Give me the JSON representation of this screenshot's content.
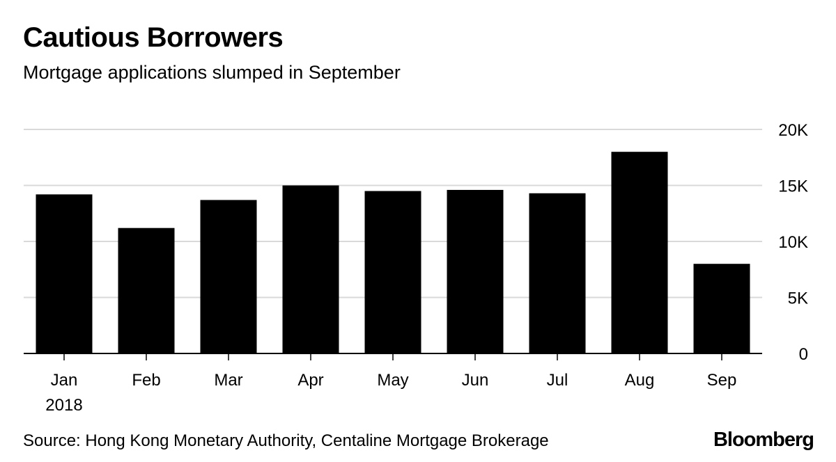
{
  "title": "Cautious Borrowers",
  "subtitle": "Mortgage applications slumped in September",
  "source": "Source: Hong Kong Monetary Authority, Centaline Mortgage Brokerage",
  "logo": "Bloomberg",
  "colors": {
    "bar": "#000000",
    "grid": "#d9d9d9",
    "axis": "#000000"
  },
  "chart_data": {
    "type": "bar",
    "title": "Cautious Borrowers",
    "subtitle": "Mortgage applications slumped in September",
    "categories": [
      "Jan",
      "Feb",
      "Mar",
      "Apr",
      "May",
      "Jun",
      "Jul",
      "Aug",
      "Sep"
    ],
    "year_label": "2018",
    "values": [
      14200,
      11200,
      13700,
      15000,
      14500,
      14600,
      14300,
      18000,
      8000
    ],
    "ylim": [
      0,
      20000
    ],
    "yticks": [
      0,
      5000,
      10000,
      15000,
      20000
    ],
    "ytick_labels": [
      "0",
      "5K",
      "10K",
      "15K",
      "20K"
    ],
    "xlabel": "",
    "ylabel": "",
    "y_axis_position": "right",
    "grid": true
  }
}
